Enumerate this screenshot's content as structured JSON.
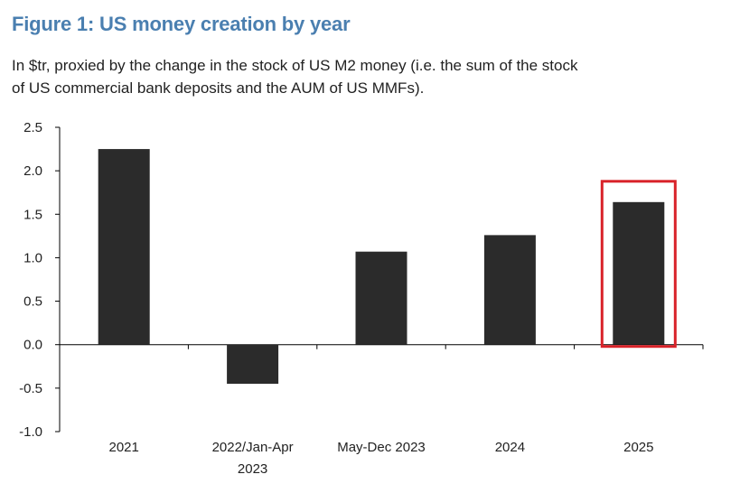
{
  "figure": {
    "title": "Figure 1: US money creation by year",
    "subtitle_line1": "In $tr, proxied by the change in the stock of US M2 money (i.e. the sum of the stock",
    "subtitle_line2": "of US commercial bank deposits and the AUM of US MMFs)."
  },
  "chart_data": {
    "type": "bar",
    "title": "Figure 1: US money creation by year",
    "ylabel": "$tr",
    "xlabel": "",
    "ylim": [
      -1.0,
      2.5
    ],
    "yticks": [
      "2.5",
      "2.0",
      "1.5",
      "1.0",
      "0.5",
      "0.0",
      "-0.5",
      "-1.0"
    ],
    "categories": [
      [
        "2021"
      ],
      [
        "2022/Jan-Apr",
        "2023"
      ],
      [
        "May-Dec 2023"
      ],
      [
        "2024"
      ],
      [
        "2025"
      ]
    ],
    "values": [
      2.25,
      -0.45,
      1.07,
      1.26,
      1.64
    ],
    "bar_color": "#2b2b2b",
    "highlight_color": "#d9232a",
    "highlighted_category": "2025",
    "grid": false
  }
}
